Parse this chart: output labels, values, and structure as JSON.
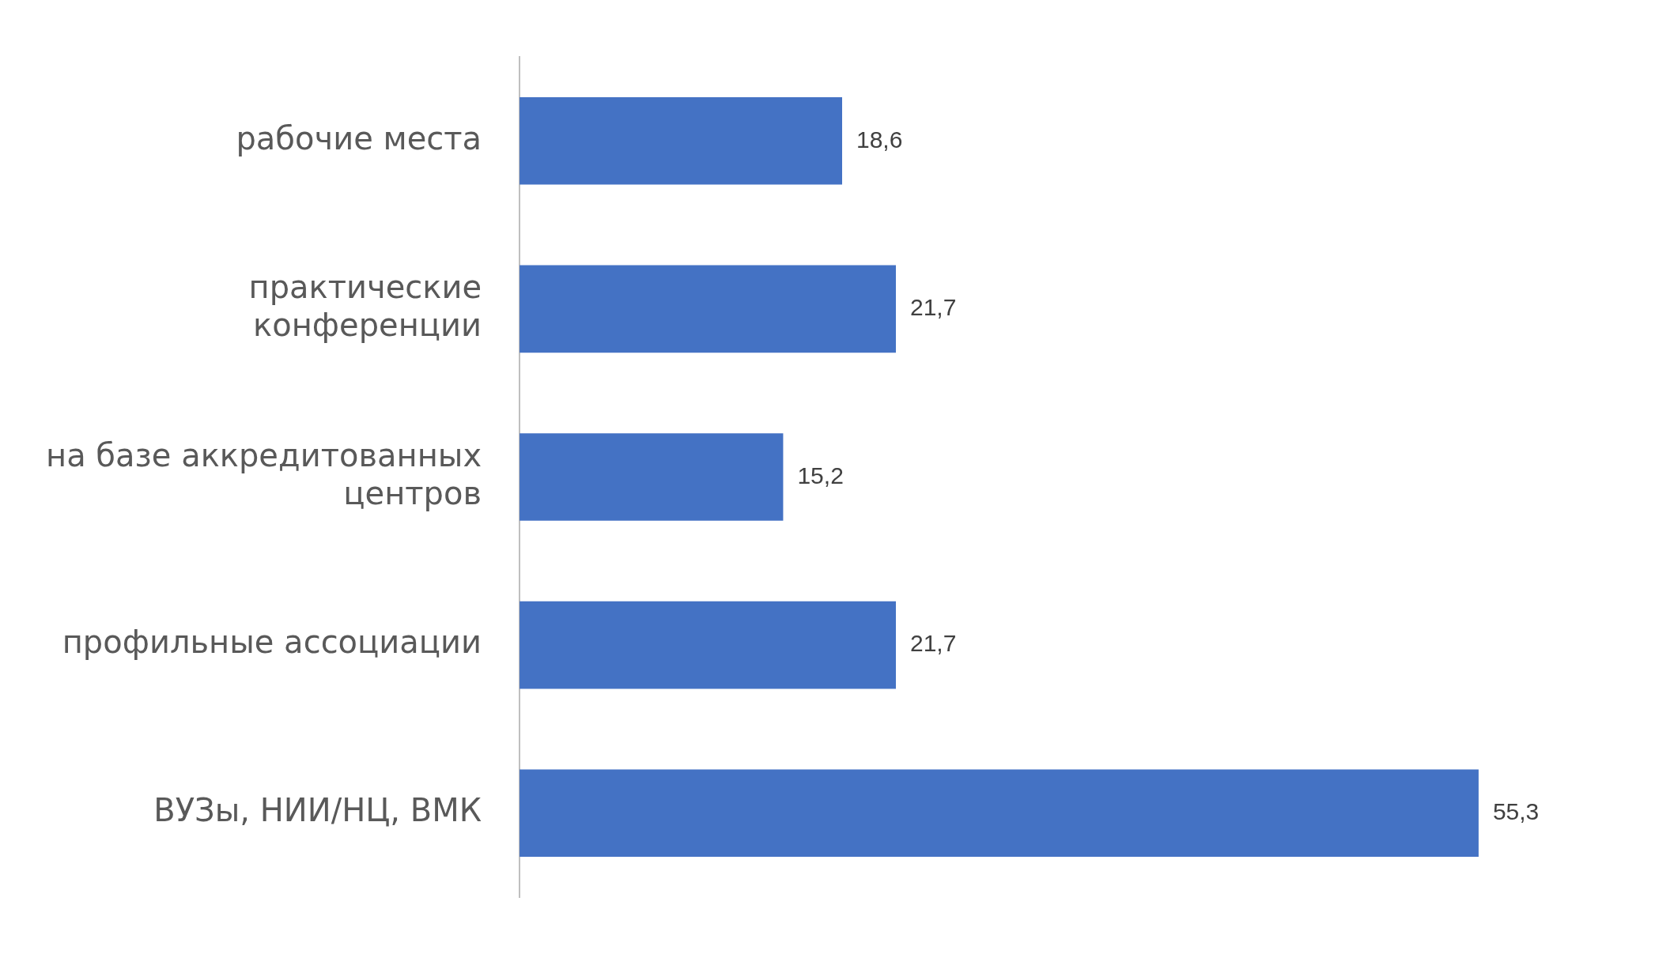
{
  "chart_data": {
    "type": "bar",
    "orientation": "horizontal",
    "categories": [
      "рабочие места",
      "практические\nконференции",
      "на базе аккредитованных\nцентров",
      "профильные ассоциации",
      "ВУЗы, НИИ/НЦ, ВМК"
    ],
    "values": [
      18.6,
      21.7,
      15.2,
      21.7,
      55.3
    ],
    "value_labels": [
      "18,6",
      "21,7",
      "15,2",
      "21,7",
      "55,3"
    ],
    "color": "#4472c4",
    "grid": false,
    "legend": false
  }
}
